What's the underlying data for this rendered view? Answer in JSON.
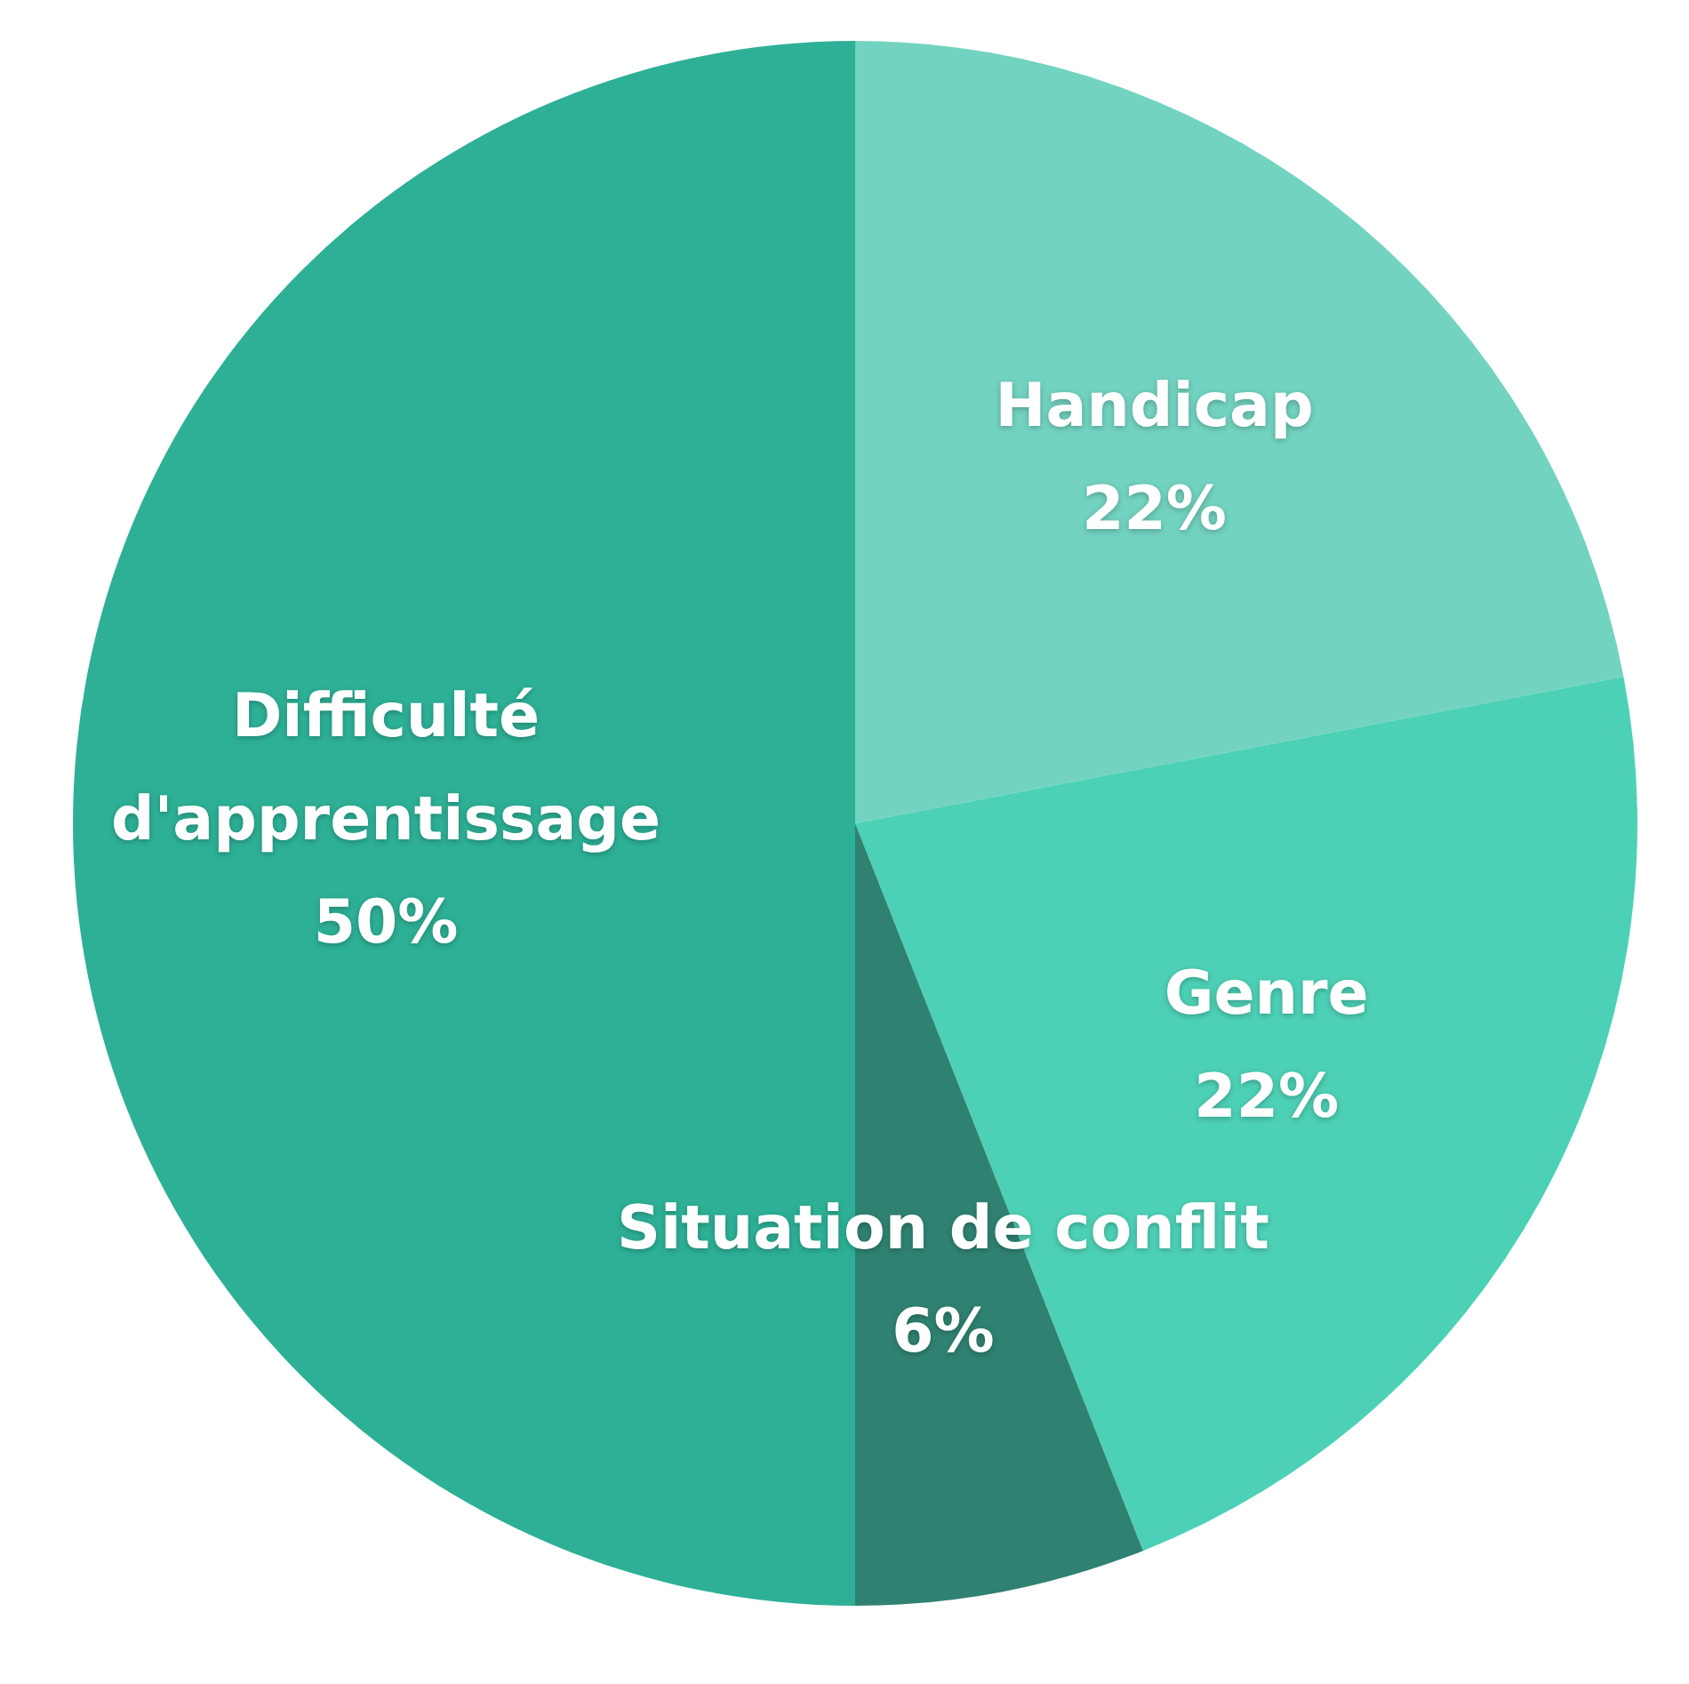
{
  "chart_data": {
    "type": "pie",
    "categories": [
      "Handicap",
      "Genre",
      "Situation de conflit",
      "Difficulté d'apprentissage"
    ],
    "values": [
      22,
      22,
      6,
      50
    ],
    "colors": [
      "#72d3c0",
      "#4dd1b6",
      "#2f8271",
      "#2db096"
    ],
    "value_labels": [
      "22%",
      "22%",
      "6%",
      "50%"
    ]
  }
}
